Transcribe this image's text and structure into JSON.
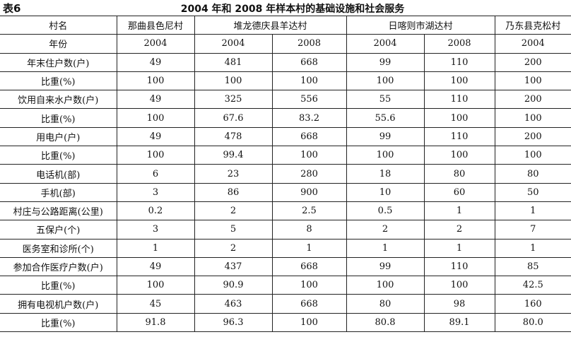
{
  "table_label": "表6",
  "title": "2004 年和 2008 年样本村的基础设施和社会服务",
  "header": {
    "village_label": "村名",
    "villages": [
      "那曲县色尼村",
      "堆龙德庆县羊达村",
      "日喀则市湖达村",
      "乃东县克松村"
    ],
    "year_label": "年份",
    "years": [
      "2004",
      "2004",
      "2008",
      "2004",
      "2008",
      "2004"
    ]
  },
  "rows": [
    {
      "label": "年末住户数(户)",
      "values": [
        "49",
        "481",
        "668",
        "99",
        "110",
        "200"
      ]
    },
    {
      "label": "比重(%)",
      "values": [
        "100",
        "100",
        "100",
        "100",
        "100",
        "100"
      ]
    },
    {
      "label": "饮用自来水户数(户)",
      "values": [
        "49",
        "325",
        "556",
        "55",
        "110",
        "200"
      ]
    },
    {
      "label": "比重(%)",
      "values": [
        "100",
        "67.6",
        "83.2",
        "55.6",
        "100",
        "100"
      ]
    },
    {
      "label": "用电户(户)",
      "values": [
        "49",
        "478",
        "668",
        "99",
        "110",
        "200"
      ]
    },
    {
      "label": "比重(%)",
      "values": [
        "100",
        "99.4",
        "100",
        "100",
        "100",
        "100"
      ]
    },
    {
      "label": "电话机(部)",
      "values": [
        "6",
        "23",
        "280",
        "18",
        "80",
        "80"
      ]
    },
    {
      "label": "手机(部)",
      "values": [
        "3",
        "86",
        "900",
        "10",
        "60",
        "50"
      ]
    },
    {
      "label": "村庄与公路距离(公里)",
      "values": [
        "0.2",
        "2",
        "2.5",
        "0.5",
        "1",
        "1"
      ]
    },
    {
      "label": "五保户(个)",
      "values": [
        "3",
        "5",
        "8",
        "2",
        "2",
        "7"
      ]
    },
    {
      "label": "医务室和诊所(个)",
      "values": [
        "1",
        "2",
        "1",
        "1",
        "1",
        "1"
      ]
    },
    {
      "label": "参加合作医疗户数(户)",
      "values": [
        "49",
        "437",
        "668",
        "99",
        "110",
        "85"
      ]
    },
    {
      "label": "比重(%)",
      "values": [
        "100",
        "90.9",
        "100",
        "100",
        "100",
        "42.5"
      ]
    },
    {
      "label": "拥有电视机户数(户)",
      "values": [
        "45",
        "463",
        "668",
        "80",
        "98",
        "160"
      ]
    },
    {
      "label": "比重(%)",
      "values": [
        "91.8",
        "96.3",
        "100",
        "80.8",
        "89.1",
        "80.0"
      ]
    }
  ]
}
